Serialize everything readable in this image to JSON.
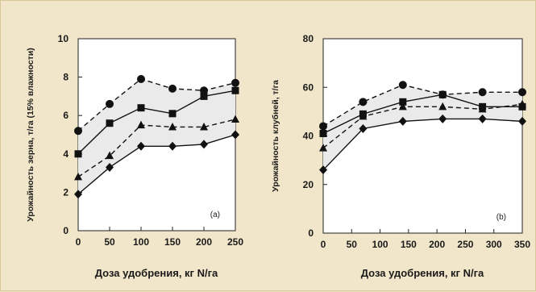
{
  "chart_data": [
    {
      "type": "line",
      "panel_label": "(a)",
      "xlabel": "Доза удобрения, кг N/га",
      "ylabel": "Урожайность зерна, т/га (15% влажности)",
      "xlim": [
        0,
        250
      ],
      "ylim": [
        0,
        10
      ],
      "xticks": [
        0,
        50,
        100,
        150,
        200,
        250
      ],
      "yticks": [
        0,
        2,
        4,
        6,
        8,
        10
      ],
      "grid": false,
      "shaded_band_between_series": [
        0,
        3
      ],
      "series": [
        {
          "marker": "circle",
          "line": "dashed",
          "x": [
            0,
            50,
            100,
            150,
            200,
            250
          ],
          "y": [
            5.2,
            6.6,
            7.9,
            7.4,
            7.3,
            7.7
          ]
        },
        {
          "marker": "square",
          "line": "solid",
          "x": [
            0,
            50,
            100,
            150,
            200,
            250
          ],
          "y": [
            4.0,
            5.6,
            6.4,
            6.1,
            7.0,
            7.3
          ]
        },
        {
          "marker": "triangle",
          "line": "dashed",
          "x": [
            0,
            50,
            100,
            150,
            200,
            250
          ],
          "y": [
            2.8,
            3.9,
            5.5,
            5.4,
            5.4,
            5.8
          ]
        },
        {
          "marker": "diamond",
          "line": "solid",
          "x": [
            0,
            50,
            100,
            150,
            200,
            250
          ],
          "y": [
            1.9,
            3.3,
            4.4,
            4.4,
            4.5,
            5.0
          ]
        }
      ]
    },
    {
      "type": "line",
      "panel_label": "(b)",
      "xlabel": "Доза удобрения, кг N/га",
      "ylabel": "Урожайность клубней, т/га",
      "xlim": [
        0,
        350
      ],
      "ylim": [
        0,
        80
      ],
      "xticks": [
        0,
        50,
        100,
        150,
        200,
        250,
        300,
        350
      ],
      "yticks": [
        0,
        20,
        40,
        60,
        80
      ],
      "grid": false,
      "shaded_band_between_series": [
        0,
        3
      ],
      "series": [
        {
          "marker": "circle",
          "line": "dashed",
          "x": [
            0,
            70,
            140,
            210,
            280,
            350
          ],
          "y": [
            44,
            54,
            61,
            57,
            58,
            58
          ]
        },
        {
          "marker": "square",
          "line": "solid",
          "x": [
            0,
            70,
            140,
            210,
            280,
            350
          ],
          "y": [
            41,
            49,
            54,
            57,
            52,
            52
          ]
        },
        {
          "marker": "triangle",
          "line": "dashed",
          "x": [
            0,
            70,
            140,
            210,
            280,
            350
          ],
          "y": [
            35,
            48,
            52,
            52,
            51,
            53
          ]
        },
        {
          "marker": "diamond",
          "line": "solid",
          "x": [
            0,
            70,
            140,
            210,
            280,
            350
          ],
          "y": [
            26,
            43,
            46,
            47,
            47,
            46
          ]
        }
      ]
    }
  ]
}
